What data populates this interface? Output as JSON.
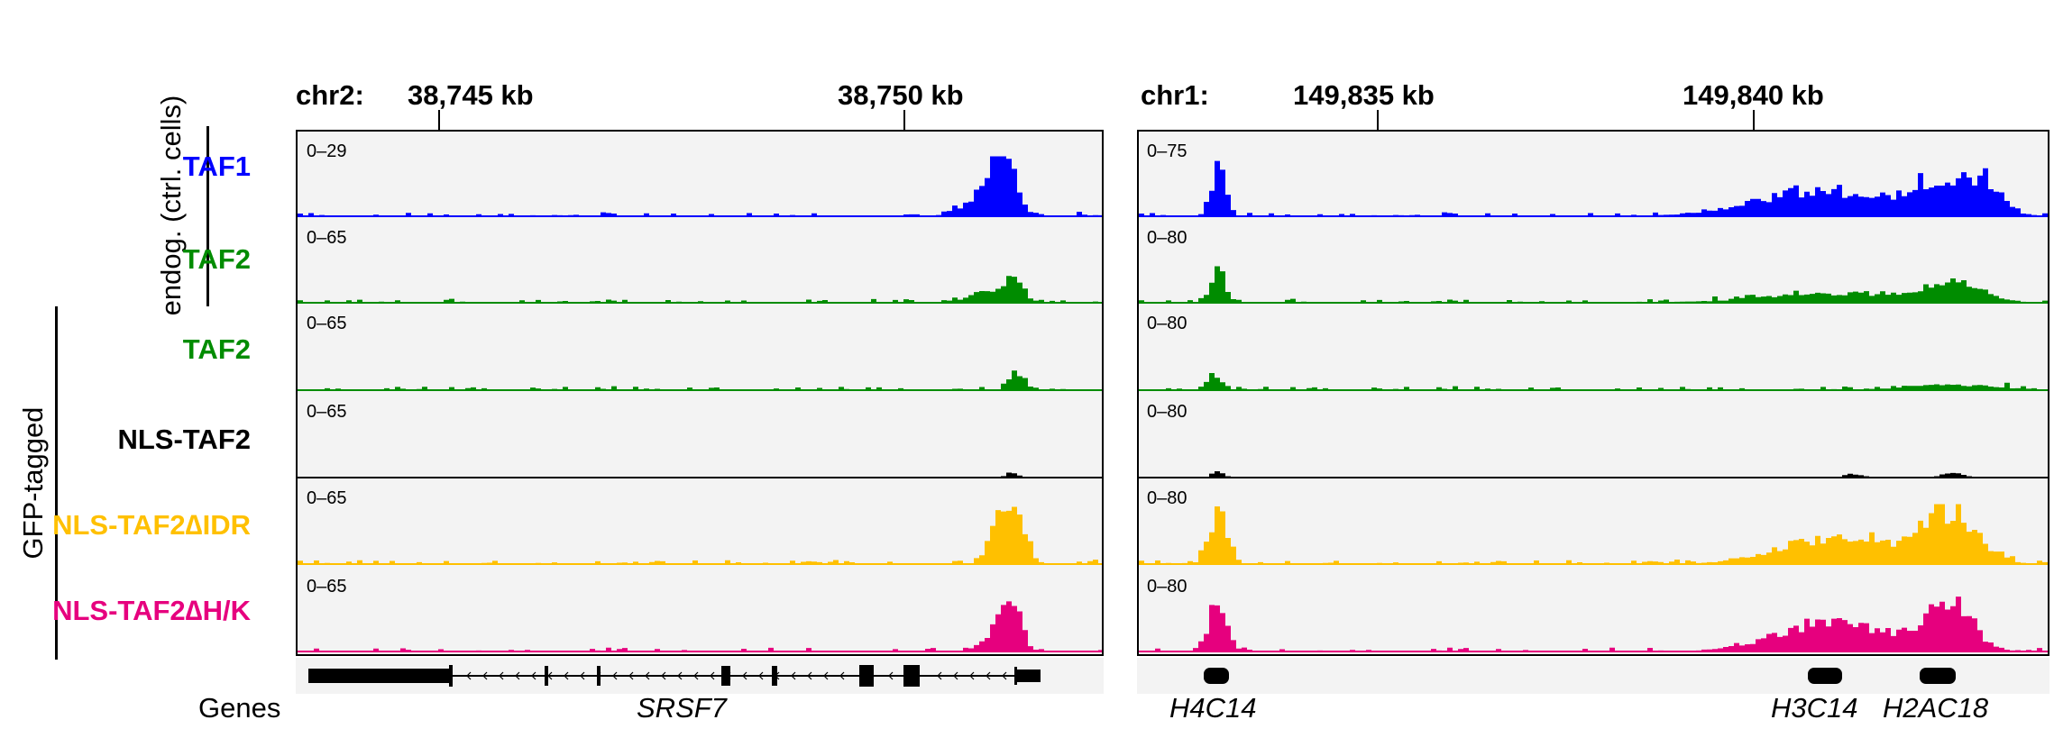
{
  "panels": [
    {
      "chrom": "chr2:",
      "ticks": [
        "38,745 kb",
        "38,750 kb"
      ],
      "tracks": [
        {
          "range": "0–29",
          "color": "#0000ff"
        },
        {
          "range": "0–65",
          "color": "#008c00"
        },
        {
          "range": "0–65",
          "color": "#008c00"
        },
        {
          "range": "0–65",
          "color": "#000000"
        },
        {
          "range": "0–65",
          "color": "#ffc000"
        },
        {
          "range": "0–65",
          "color": "#e6007e"
        }
      ],
      "genes": [
        {
          "name": "SRSF7"
        }
      ]
    },
    {
      "chrom": "chr1:",
      "ticks": [
        "149,835 kb",
        "149,840 kb"
      ],
      "tracks": [
        {
          "range": "0–75",
          "color": "#0000ff"
        },
        {
          "range": "0–80",
          "color": "#008c00"
        },
        {
          "range": "0–80",
          "color": "#008c00"
        },
        {
          "range": "0–80",
          "color": "#000000"
        },
        {
          "range": "0–80",
          "color": "#ffc000"
        },
        {
          "range": "0–80",
          "color": "#e6007e"
        }
      ],
      "genes": [
        {
          "name": "H4C14"
        },
        {
          "name": "H3C14"
        },
        {
          "name": "H2AC18"
        }
      ]
    }
  ],
  "track_labels": [
    {
      "text": "TAF1",
      "color": "#0000ff"
    },
    {
      "text": "TAF2",
      "color": "#008c00"
    },
    {
      "text": "TAF2",
      "color": "#008c00"
    },
    {
      "text": "NLS-TAF2",
      "color": "#000000"
    },
    {
      "text": "NLS-TAF2∆IDR",
      "color": "#ffc000"
    },
    {
      "text": "NLS-TAF2∆H/K",
      "color": "#e6007e"
    }
  ],
  "groups": {
    "endog": "endog. (ctrl. cells)",
    "gfp": "GFP-tagged"
  },
  "genes_row_label": "Genes"
}
